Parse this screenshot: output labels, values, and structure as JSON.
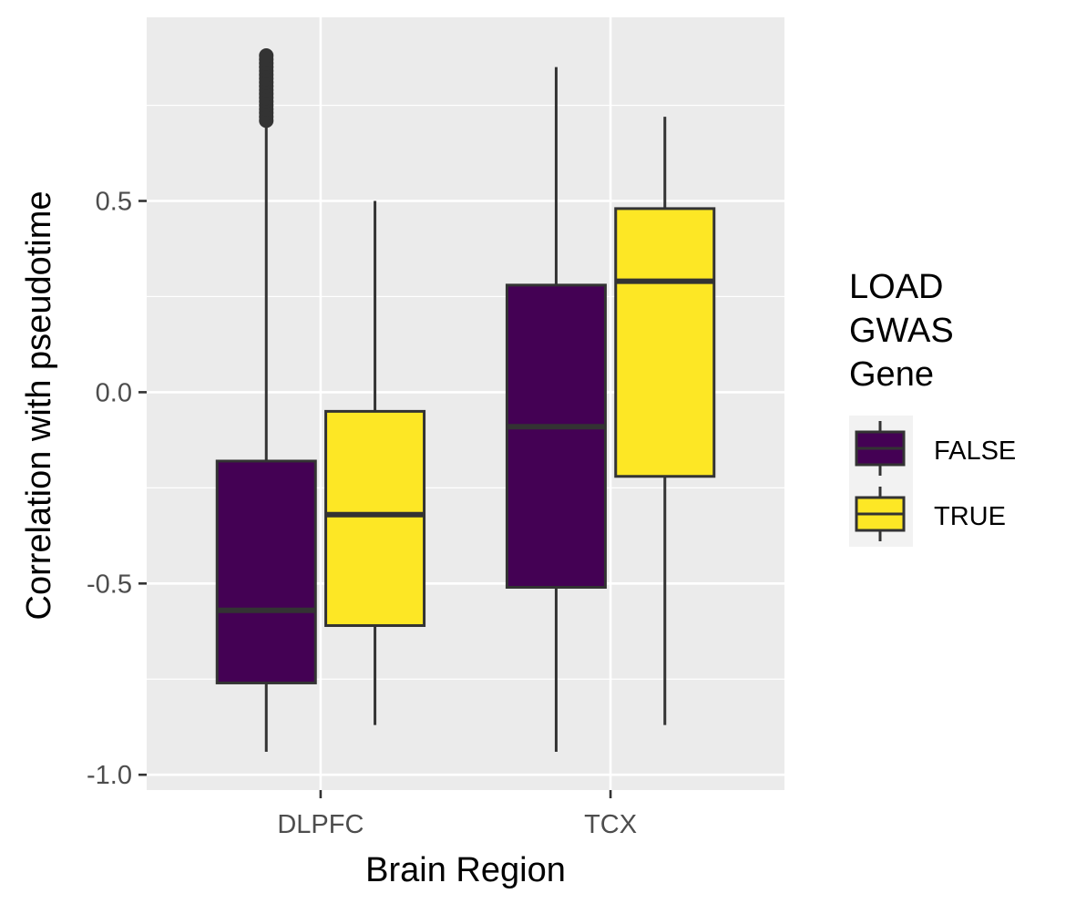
{
  "chart_data": {
    "type": "boxplot",
    "xlabel": "Brain Region",
    "ylabel": "Correlation with pseudotime",
    "categories": [
      "DLPFC",
      "TCX"
    ],
    "ylim": [
      -1.04,
      0.98
    ],
    "yticks": [
      -1.0,
      -0.5,
      0.0,
      0.5
    ],
    "ytick_labels": [
      "-1.0",
      "-0.5",
      "0.0",
      "0.5"
    ],
    "grid": true,
    "legend": {
      "title": [
        "LOAD",
        "GWAS",
        "Gene"
      ],
      "position": "right"
    },
    "series": [
      {
        "name": "FALSE",
        "color": "#440154",
        "boxes": [
          {
            "category": "DLPFC",
            "whisker_low": -0.94,
            "q1": -0.76,
            "median": -0.57,
            "q3": -0.18,
            "whisker_high": 0.7,
            "outliers": [
              0.71,
              0.72,
              0.73,
              0.74,
              0.75,
              0.76,
              0.77,
              0.78,
              0.79,
              0.8,
              0.81,
              0.82,
              0.83,
              0.84,
              0.85,
              0.86,
              0.87,
              0.88
            ]
          },
          {
            "category": "TCX",
            "whisker_low": -0.94,
            "q1": -0.51,
            "median": -0.09,
            "q3": 0.28,
            "whisker_high": 0.85,
            "outliers": []
          }
        ]
      },
      {
        "name": "TRUE",
        "color": "#FDE725",
        "boxes": [
          {
            "category": "DLPFC",
            "whisker_low": -0.87,
            "q1": -0.61,
            "median": -0.32,
            "q3": -0.05,
            "whisker_high": 0.5,
            "outliers": []
          },
          {
            "category": "TCX",
            "whisker_low": -0.87,
            "q1": -0.22,
            "median": 0.29,
            "q3": 0.48,
            "whisker_high": 0.72,
            "outliers": []
          }
        ]
      }
    ]
  }
}
